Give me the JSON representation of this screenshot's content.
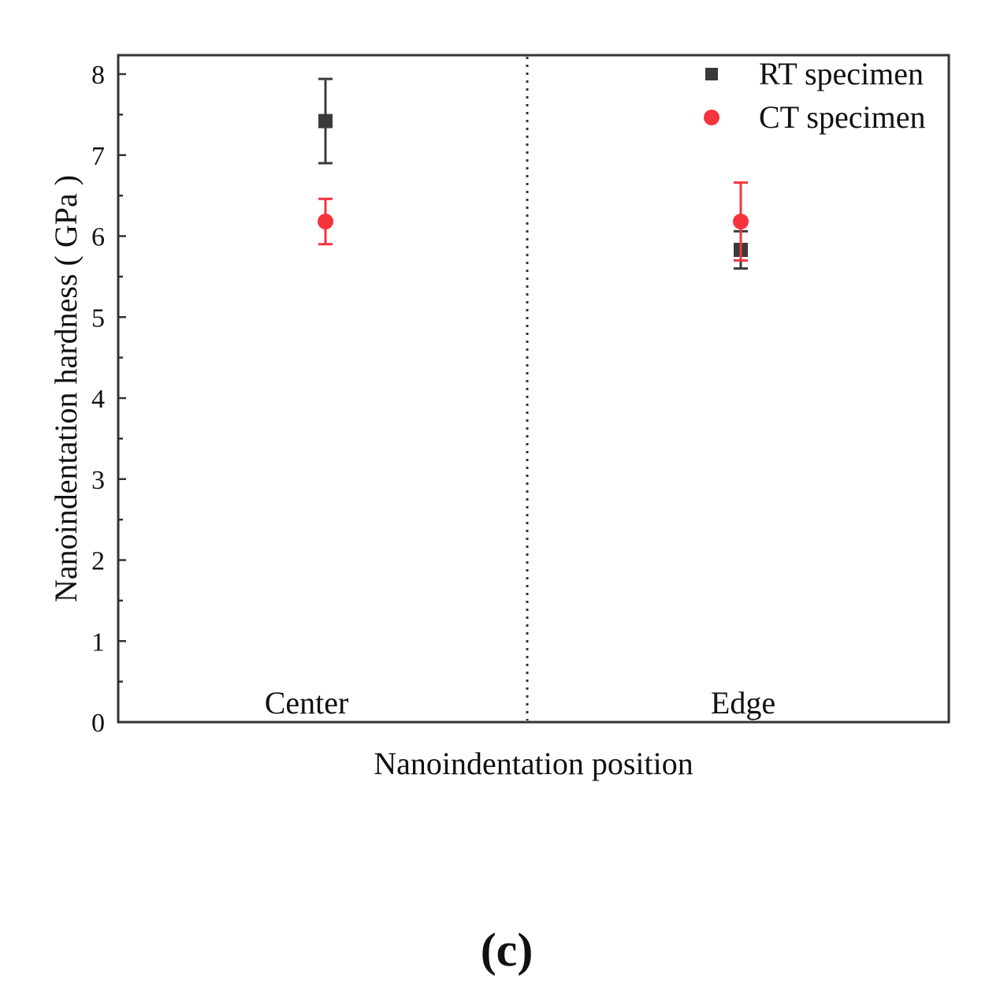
{
  "chart_data": {
    "type": "scatter",
    "title": "",
    "xlabel": "Nanoindentation position",
    "ylabel": "Nanoindentation hardness ( GPa )",
    "ylim": [
      0,
      8.25
    ],
    "yticks": [
      "0",
      "1",
      "2",
      "3",
      "4",
      "5",
      "6",
      "7",
      "8"
    ],
    "categories": [
      "Center",
      "Edge"
    ],
    "grid": false,
    "divider": "dotted vertical line between categories",
    "legend_position": "top-right",
    "series": [
      {
        "name": "RT specimen",
        "marker": "square",
        "color": "#3a3a3a",
        "values": [
          7.42,
          5.83
        ],
        "errors": [
          0.52,
          0.23
        ]
      },
      {
        "name": "CT specimen",
        "marker": "circle",
        "color": "#f5333d",
        "values": [
          6.18,
          6.18
        ],
        "errors": [
          0.28,
          0.48
        ]
      }
    ]
  },
  "panel_label": "(c)"
}
